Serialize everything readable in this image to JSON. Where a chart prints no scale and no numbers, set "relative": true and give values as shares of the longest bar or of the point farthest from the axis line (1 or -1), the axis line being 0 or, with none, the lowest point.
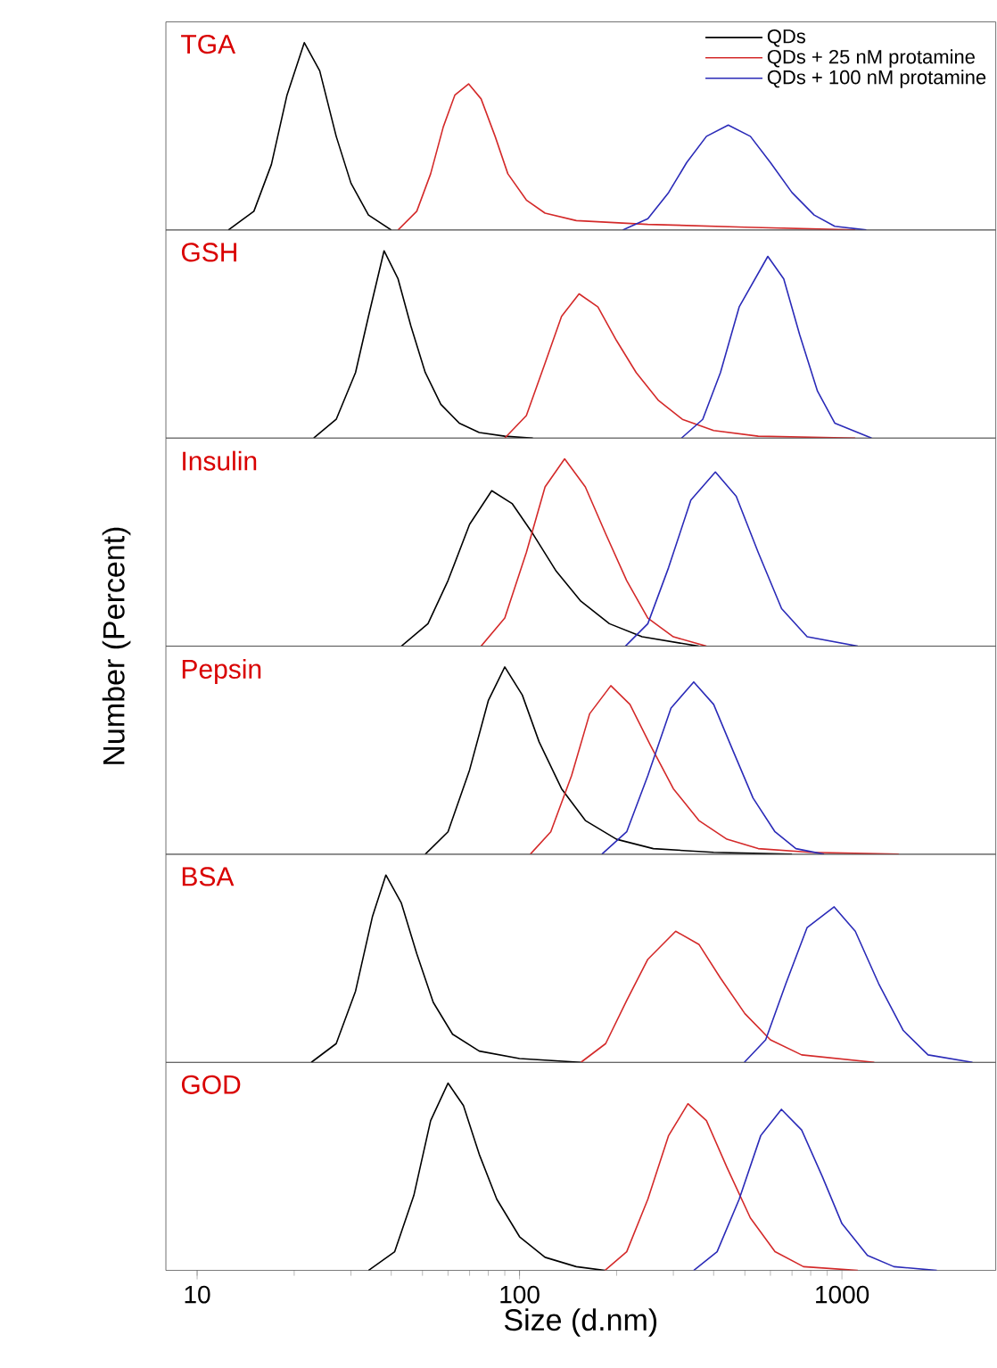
{
  "chart_data": [
    {
      "type": "line",
      "title": "TGA",
      "relative": true,
      "log": "x",
      "xlim": [
        8,
        3000
      ],
      "tick_labels": false,
      "legend": "top right",
      "series": [
        {
          "name": "QDs",
          "color": "#000000",
          "x": [
            12.5,
            15,
            17,
            19,
            21.5,
            24,
            27,
            30,
            34,
            40
          ],
          "values": [
            0,
            0.1,
            0.35,
            0.72,
            1.0,
            0.85,
            0.5,
            0.25,
            0.08,
            0
          ]
        },
        {
          "name": "QDs + 25 nM protamine",
          "color": "#d42a2a",
          "x": [
            42,
            48,
            53,
            58,
            63,
            69.5,
            76,
            84,
            92,
            105,
            120,
            150,
            250,
            500,
            1100
          ],
          "values": [
            0,
            0.1,
            0.3,
            0.55,
            0.72,
            0.78,
            0.7,
            0.5,
            0.3,
            0.16,
            0.09,
            0.05,
            0.03,
            0.015,
            0
          ]
        },
        {
          "name": "QDs + 100 nM protamine",
          "color": "#2b2bb8",
          "x": [
            209,
            250,
            290,
            330,
            380,
            444,
            520,
            600,
            700,
            820,
            950,
            1190
          ],
          "values": [
            0,
            0.06,
            0.2,
            0.36,
            0.5,
            0.56,
            0.5,
            0.36,
            0.2,
            0.08,
            0.02,
            0
          ]
        }
      ]
    },
    {
      "type": "line",
      "title": "GSH",
      "relative": true,
      "log": "x",
      "xlim": [
        8,
        3000
      ],
      "tick_labels": false,
      "series": [
        {
          "color": "#000000",
          "x": [
            23,
            27,
            31,
            34,
            38,
            42,
            46,
            51,
            57,
            65,
            75,
            90,
            110
          ],
          "values": [
            0,
            0.1,
            0.35,
            0.65,
            1.0,
            0.85,
            0.6,
            0.35,
            0.18,
            0.08,
            0.03,
            0.01,
            0
          ]
        },
        {
          "color": "#d42a2a",
          "x": [
            90,
            105,
            120,
            135,
            153,
            175,
            200,
            230,
            270,
            320,
            400,
            550,
            1100
          ],
          "values": [
            0,
            0.12,
            0.4,
            0.65,
            0.77,
            0.7,
            0.52,
            0.35,
            0.2,
            0.1,
            0.04,
            0.01,
            0
          ]
        },
        {
          "color": "#2b2bb8",
          "x": [
            318,
            370,
            420,
            480,
            589,
            660,
            740,
            840,
            950,
            1236
          ],
          "values": [
            0,
            0.1,
            0.35,
            0.7,
            0.97,
            0.85,
            0.55,
            0.25,
            0.08,
            0
          ]
        }
      ]
    },
    {
      "type": "line",
      "title": "Insulin",
      "ylabel": "Number (Percent)",
      "relative": true,
      "log": "x",
      "xlim": [
        8,
        3000
      ],
      "tick_labels": false,
      "series": [
        {
          "color": "#000000",
          "x": [
            43,
            52,
            60,
            70,
            82,
            95,
            110,
            130,
            155,
            190,
            240,
            360
          ],
          "values": [
            0,
            0.12,
            0.35,
            0.65,
            0.83,
            0.76,
            0.6,
            0.4,
            0.24,
            0.12,
            0.05,
            0
          ]
        },
        {
          "color": "#d42a2a",
          "x": [
            76,
            90,
            105,
            120,
            138,
            160,
            185,
            215,
            250,
            300,
            380
          ],
          "values": [
            0,
            0.15,
            0.5,
            0.85,
            1.0,
            0.85,
            0.6,
            0.35,
            0.15,
            0.05,
            0
          ]
        },
        {
          "color": "#2b2bb8",
          "x": [
            213,
            250,
            290,
            340,
            405,
            470,
            550,
            650,
            780,
            1120
          ],
          "values": [
            0,
            0.12,
            0.42,
            0.78,
            0.93,
            0.8,
            0.5,
            0.2,
            0.05,
            0
          ]
        }
      ]
    },
    {
      "type": "line",
      "title": "Pepsin",
      "relative": true,
      "log": "x",
      "xlim": [
        8,
        3000
      ],
      "tick_labels": false,
      "series": [
        {
          "color": "#000000",
          "x": [
            51,
            60,
            70,
            80,
            90,
            102,
            115,
            135,
            160,
            200,
            260,
            400,
            700
          ],
          "values": [
            0,
            0.12,
            0.45,
            0.82,
            1.0,
            0.85,
            0.6,
            0.35,
            0.18,
            0.08,
            0.03,
            0.01,
            0
          ]
        },
        {
          "color": "#d42a2a",
          "x": [
            108,
            125,
            145,
            165,
            192,
            220,
            255,
            300,
            360,
            440,
            550,
            800,
            1500
          ],
          "values": [
            0,
            0.12,
            0.42,
            0.75,
            0.9,
            0.8,
            0.58,
            0.35,
            0.18,
            0.08,
            0.03,
            0.01,
            0
          ]
        },
        {
          "color": "#2b2bb8",
          "x": [
            180,
            215,
            250,
            295,
            347,
            400,
            460,
            530,
            620,
            720,
            880
          ],
          "values": [
            0,
            0.12,
            0.42,
            0.78,
            0.92,
            0.8,
            0.55,
            0.3,
            0.12,
            0.03,
            0
          ]
        }
      ]
    },
    {
      "type": "line",
      "title": "BSA",
      "relative": true,
      "log": "x",
      "xlim": [
        8,
        3000
      ],
      "tick_labels": false,
      "series": [
        {
          "color": "#000000",
          "x": [
            22.6,
            27,
            31,
            35,
            38.5,
            43,
            48,
            54,
            62,
            75,
            100,
            155
          ],
          "values": [
            0,
            0.1,
            0.38,
            0.78,
            1.0,
            0.85,
            0.58,
            0.32,
            0.15,
            0.06,
            0.02,
            0
          ]
        },
        {
          "color": "#d42a2a",
          "x": [
            155,
            185,
            215,
            250,
            305,
            360,
            420,
            500,
            600,
            750,
            1260
          ],
          "values": [
            0,
            0.1,
            0.33,
            0.55,
            0.7,
            0.63,
            0.45,
            0.26,
            0.12,
            0.04,
            0
          ]
        },
        {
          "color": "#2b2bb8",
          "x": [
            498,
            580,
            670,
            780,
            946,
            1100,
            1300,
            1550,
            1850,
            2540
          ],
          "values": [
            0,
            0.12,
            0.42,
            0.72,
            0.83,
            0.7,
            0.42,
            0.17,
            0.04,
            0
          ]
        }
      ]
    },
    {
      "type": "line",
      "title": "GOD",
      "xlabel": "Size (d.nm)",
      "relative": true,
      "log": "x",
      "xlim": [
        8,
        3000
      ],
      "xticks": [
        10,
        100,
        1000
      ],
      "tick_labels": "x",
      "series": [
        {
          "color": "#000000",
          "x": [
            34,
            41,
            47,
            53,
            60,
            67,
            75,
            85,
            100,
            120,
            150,
            184
          ],
          "values": [
            0,
            0.1,
            0.4,
            0.8,
            1.0,
            0.88,
            0.62,
            0.38,
            0.18,
            0.07,
            0.02,
            0
          ]
        },
        {
          "color": "#d42a2a",
          "x": [
            184,
            215,
            250,
            290,
            333,
            380,
            440,
            520,
            620,
            760,
            1120
          ],
          "values": [
            0,
            0.1,
            0.38,
            0.72,
            0.89,
            0.8,
            0.55,
            0.28,
            0.1,
            0.02,
            0
          ]
        },
        {
          "color": "#2b2bb8",
          "x": [
            347,
            410,
            480,
            560,
            649,
            750,
            870,
            1000,
            1200,
            1450,
            1970
          ],
          "values": [
            0,
            0.1,
            0.38,
            0.72,
            0.86,
            0.75,
            0.5,
            0.25,
            0.08,
            0.02,
            0
          ]
        }
      ]
    }
  ]
}
